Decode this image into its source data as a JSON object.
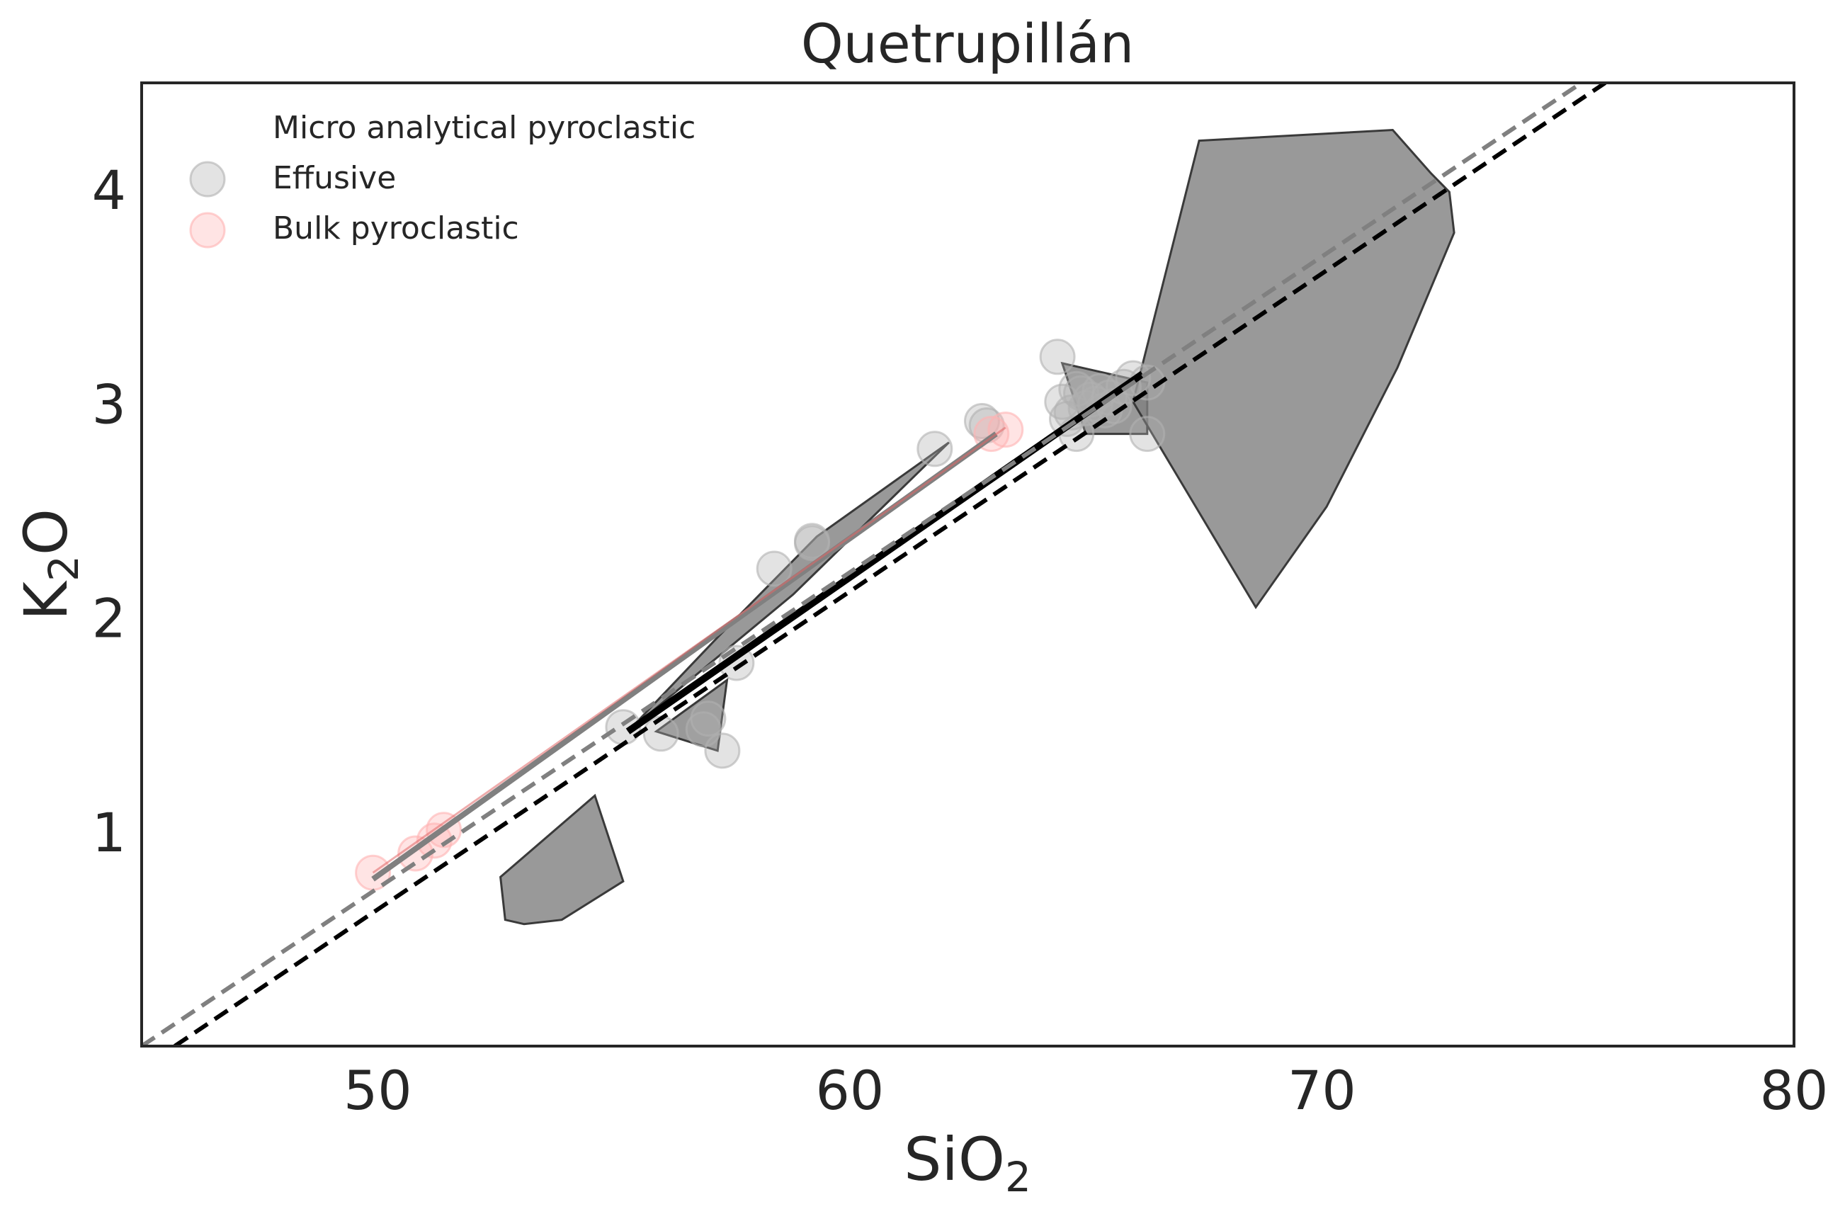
{
  "chart_data": {
    "type": "scatter",
    "title": "Quetrupillán",
    "xlabel": {
      "main": "SiO",
      "sub": "2"
    },
    "ylabel": {
      "main": "K",
      "sub": "2",
      "after": "O"
    },
    "xlim": [
      45,
      80
    ],
    "ylim": [
      0,
      4.5
    ],
    "xticks": [
      50,
      60,
      70,
      80
    ],
    "yticks": [
      1,
      2,
      3,
      4
    ],
    "grid": false,
    "legend": {
      "placement": "top-left",
      "entries": [
        {
          "label": "Micro analytical pyroclastic",
          "marker": "none"
        },
        {
          "label": "Effusive",
          "color": "#b0b0b0"
        },
        {
          "label": "Bulk pyroclastic",
          "color": "#ffb3b3"
        }
      ]
    },
    "colors": {
      "effusive": "#b0b0b0",
      "bulk": "#ffb3b3",
      "polygon_fill": "#808080",
      "polygon_edge": "#3a3a3a",
      "trend_black": "#000000",
      "trend_gray": "#808080",
      "bulk_trend": "#e06666"
    },
    "series": [
      {
        "name": "Effusive",
        "points": [
          [
            55.2,
            1.49
          ],
          [
            56.0,
            1.46
          ],
          [
            56.9,
            1.48
          ],
          [
            57.0,
            1.53
          ],
          [
            57.3,
            1.38
          ],
          [
            57.6,
            1.79
          ],
          [
            58.4,
            2.23
          ],
          [
            59.2,
            2.36
          ],
          [
            59.2,
            2.35
          ],
          [
            61.8,
            2.79
          ],
          [
            62.8,
            2.92
          ],
          [
            62.9,
            2.9
          ],
          [
            64.4,
            3.22
          ],
          [
            64.5,
            3.01
          ],
          [
            64.6,
            2.93
          ],
          [
            64.7,
            2.96
          ],
          [
            64.8,
            2.86
          ],
          [
            64.9,
            3.05
          ],
          [
            65.0,
            2.98
          ],
          [
            65.1,
            3.02
          ],
          [
            65.2,
            3.0
          ],
          [
            65.3,
            3.06
          ],
          [
            65.4,
            2.97
          ],
          [
            65.5,
            3.03
          ],
          [
            65.6,
            2.99
          ],
          [
            65.8,
            3.08
          ],
          [
            66.0,
            3.12
          ],
          [
            66.3,
            3.1
          ],
          [
            66.3,
            2.86
          ],
          [
            64.8,
            3.07
          ]
        ]
      },
      {
        "name": "Bulk pyroclastic",
        "points": [
          [
            49.9,
            0.81
          ],
          [
            50.8,
            0.9
          ],
          [
            51.2,
            0.96
          ],
          [
            51.4,
            1.01
          ],
          [
            63.3,
            2.88
          ],
          [
            63.0,
            2.86
          ]
        ]
      }
    ],
    "polygons": [
      {
        "points": [
          [
            52.6,
            0.79
          ],
          [
            54.6,
            1.17
          ],
          [
            55.2,
            0.77
          ],
          [
            53.9,
            0.59
          ],
          [
            53.1,
            0.57
          ],
          [
            52.7,
            0.59
          ]
        ]
      },
      {
        "points": [
          [
            55.9,
            1.47
          ],
          [
            57.4,
            1.71
          ],
          [
            57.2,
            1.38
          ]
        ]
      },
      {
        "points": [
          [
            55.3,
            1.47
          ],
          [
            57.2,
            1.91
          ],
          [
            59.3,
            2.38
          ],
          [
            62.1,
            2.82
          ],
          [
            58.8,
            2.11
          ]
        ]
      },
      {
        "points": [
          [
            64.5,
            3.19
          ],
          [
            66.3,
            3.1
          ],
          [
            66.3,
            2.86
          ],
          [
            65.0,
            2.86
          ]
        ]
      },
      {
        "points": [
          [
            67.4,
            4.23
          ],
          [
            71.5,
            4.28
          ],
          [
            72.3,
            4.08
          ],
          [
            72.7,
            3.99
          ],
          [
            72.8,
            3.8
          ],
          [
            71.6,
            3.17
          ],
          [
            70.1,
            2.52
          ],
          [
            68.6,
            2.05
          ],
          [
            66.0,
            3.01
          ]
        ]
      }
    ],
    "trend_lines": [
      {
        "style": "solid",
        "color": "#000000",
        "width": 10,
        "points": [
          [
            55.3,
            1.47
          ],
          [
            66.2,
            3.14
          ]
        ]
      },
      {
        "style": "solid",
        "color": "#808080",
        "width": 8,
        "points": [
          [
            49.9,
            0.78
          ],
          [
            63.1,
            2.86
          ]
        ]
      },
      {
        "style": "solid",
        "color": "#e06666",
        "width": 3,
        "opacity": 0.55,
        "points": [
          [
            49.9,
            0.81
          ],
          [
            63.3,
            2.89
          ]
        ]
      },
      {
        "style": "dashed",
        "color": "#808080",
        "width": 6,
        "points": [
          [
            45,
            0.0
          ],
          [
            75.5,
            4.5
          ]
        ]
      },
      {
        "style": "dashed",
        "color": "#000000",
        "width": 6,
        "points": [
          [
            45.7,
            0.0
          ],
          [
            76.0,
            4.5
          ]
        ]
      }
    ]
  }
}
